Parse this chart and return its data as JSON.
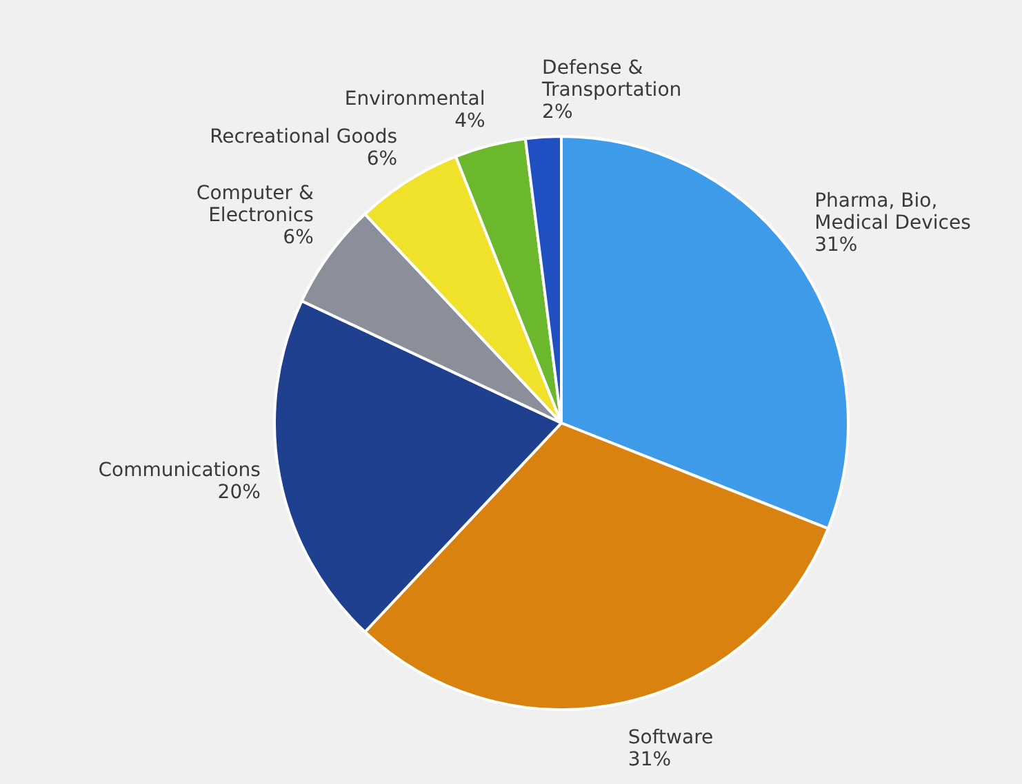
{
  "chart_data": {
    "type": "pie",
    "categories": [
      "Pharma, Bio, Medical Devices",
      "Software",
      "Communications",
      "Computer & Electronics",
      "Recreational Goods",
      "Environmental",
      "Defense & Transportation"
    ],
    "values": [
      31,
      31,
      20,
      6,
      6,
      4,
      2
    ],
    "value_labels": [
      "31%",
      "31%",
      "20%",
      "6%",
      "6%",
      "4%",
      "2%"
    ],
    "colors": [
      "#3d9be9",
      "#d9820f",
      "#1f3f8f",
      "#8a8f99",
      "#f0e22a",
      "#6cb82c",
      "#1f4fc0"
    ],
    "legend": false
  }
}
